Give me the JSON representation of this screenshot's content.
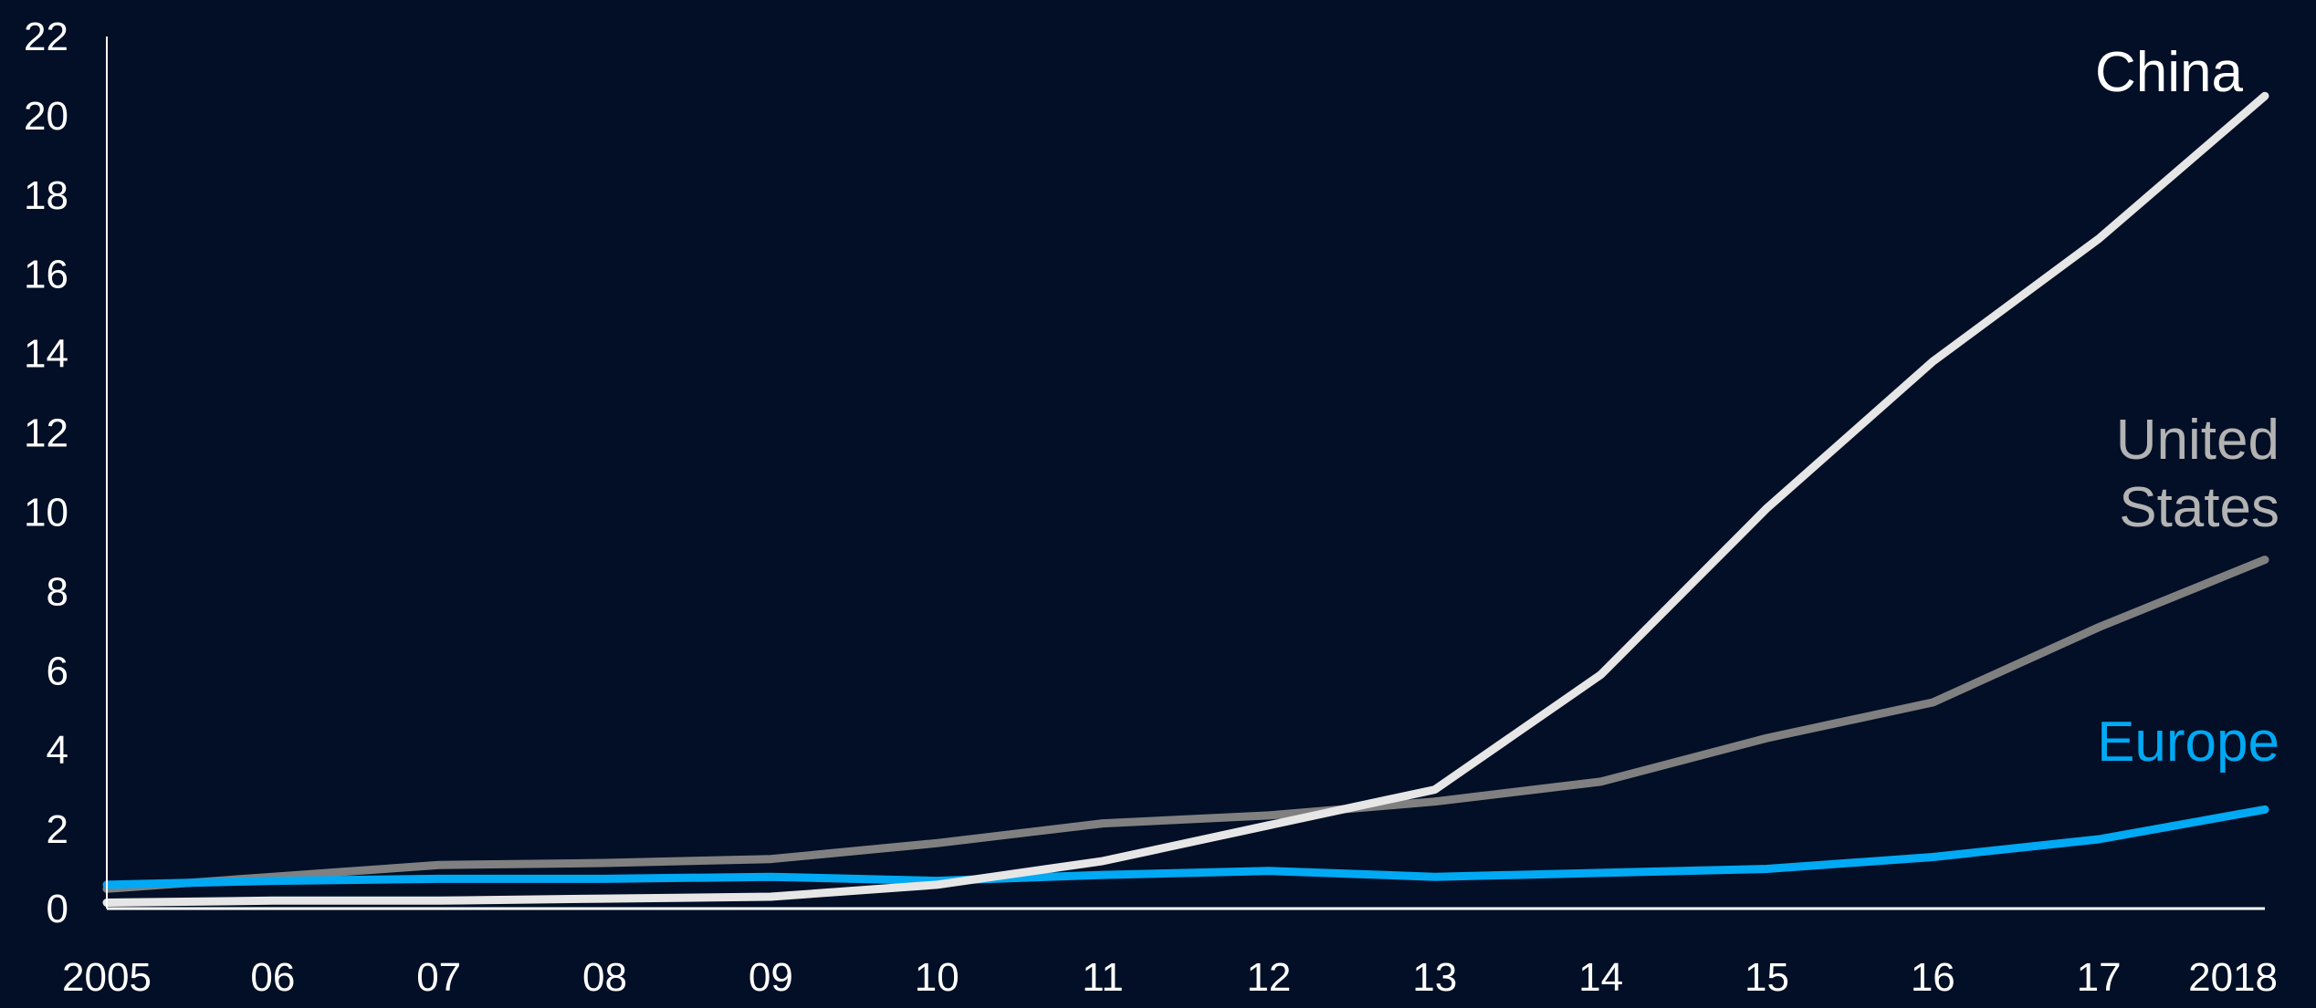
{
  "chart_data": {
    "type": "line",
    "title": "",
    "xlabel": "",
    "ylabel": "",
    "x": [
      "2005",
      "06",
      "07",
      "08",
      "09",
      "10",
      "11",
      "12",
      "13",
      "14",
      "15",
      "16",
      "17",
      "2018"
    ],
    "ylim": [
      0,
      22
    ],
    "yticks": [
      0,
      2,
      4,
      6,
      8,
      10,
      12,
      14,
      16,
      18,
      20,
      22
    ],
    "grid": false,
    "legend": "direct labels at right end of lines",
    "background_color": "#020f26",
    "axis_color": "#ffffff",
    "series": [
      {
        "name": "United States",
        "name_lines": [
          "United",
          "States"
        ],
        "color": "#808080",
        "label_color": "#b3b3b3",
        "values": [
          0.5,
          0.8,
          1.1,
          1.15,
          1.25,
          1.65,
          2.15,
          2.35,
          2.7,
          3.2,
          4.3,
          5.2,
          7.1,
          8.8
        ]
      },
      {
        "name": "Europe",
        "name_lines": [
          "Europe"
        ],
        "color": "#00a9f4",
        "label_color": "#00a9f4",
        "values": [
          0.6,
          0.7,
          0.75,
          0.75,
          0.8,
          0.7,
          0.85,
          0.95,
          0.8,
          0.9,
          1.0,
          1.3,
          1.75,
          2.5
        ]
      },
      {
        "name": "China",
        "name_lines": [
          "China"
        ],
        "color": "#e6e6e6",
        "label_color": "#ffffff",
        "values": [
          0.15,
          0.2,
          0.2,
          0.25,
          0.3,
          0.6,
          1.2,
          2.1,
          3.0,
          5.9,
          10.1,
          13.8,
          16.9,
          20.5
        ]
      }
    ]
  }
}
